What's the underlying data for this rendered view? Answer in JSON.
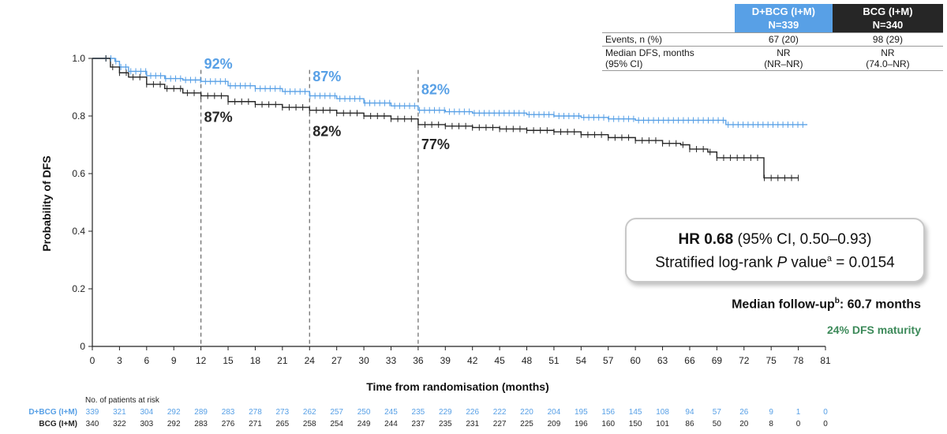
{
  "chart_data": {
    "type": "line",
    "title": "",
    "xlabel": "Time from randomisation (months)",
    "ylabel": "Probability of DFS",
    "xlim": [
      0,
      81
    ],
    "ylim": [
      0,
      1.0
    ],
    "x_ticks": [
      0,
      3,
      6,
      9,
      12,
      15,
      18,
      21,
      24,
      27,
      30,
      33,
      36,
      39,
      42,
      45,
      48,
      51,
      54,
      57,
      60,
      63,
      66,
      69,
      72,
      75,
      78,
      81
    ],
    "y_ticks": [
      0,
      0.2,
      0.4,
      0.6,
      0.8,
      1.0
    ],
    "y_tick_labels": [
      "0",
      "0.2",
      "0.4",
      "0.6",
      "0.8",
      "1.0"
    ],
    "grid": false,
    "series": [
      {
        "name": "D+BCG (I+M)",
        "color": "#58a0e6",
        "x": [
          0,
          2.5,
          3,
          4,
          6,
          8,
          10,
          12,
          15,
          18,
          21,
          24,
          27,
          30,
          33,
          36,
          39,
          42,
          45,
          48,
          51,
          54,
          57,
          60,
          63,
          66,
          69,
          70,
          72,
          75,
          78,
          79
        ],
        "y": [
          1.0,
          0.99,
          0.97,
          0.955,
          0.94,
          0.93,
          0.925,
          0.92,
          0.905,
          0.895,
          0.885,
          0.87,
          0.86,
          0.845,
          0.835,
          0.82,
          0.815,
          0.81,
          0.81,
          0.805,
          0.8,
          0.795,
          0.79,
          0.785,
          0.785,
          0.785,
          0.785,
          0.77,
          0.77,
          0.77,
          0.77,
          0.77
        ]
      },
      {
        "name": "BCG (I+M)",
        "color": "#262626",
        "x": [
          0,
          2,
          3,
          4,
          6,
          8,
          10,
          12,
          15,
          18,
          21,
          24,
          27,
          30,
          33,
          36,
          39,
          42,
          45,
          48,
          51,
          54,
          57,
          60,
          63,
          65,
          66,
          68,
          69,
          72,
          74,
          74.2,
          76,
          78
        ],
        "y": [
          1.0,
          0.97,
          0.95,
          0.935,
          0.91,
          0.895,
          0.88,
          0.87,
          0.85,
          0.84,
          0.83,
          0.82,
          0.81,
          0.8,
          0.79,
          0.77,
          0.765,
          0.76,
          0.755,
          0.75,
          0.745,
          0.735,
          0.725,
          0.715,
          0.705,
          0.7,
          0.685,
          0.675,
          0.655,
          0.655,
          0.655,
          0.585,
          0.585,
          0.585
        ]
      }
    ],
    "reference_lines": [
      {
        "x": 12,
        "labels": [
          {
            "series": 0,
            "text": "92%",
            "y": 0.965
          },
          {
            "series": 1,
            "text": "87%",
            "y": 0.78
          }
        ]
      },
      {
        "x": 24,
        "labels": [
          {
            "series": 0,
            "text": "87%",
            "y": 0.92
          },
          {
            "series": 1,
            "text": "82%",
            "y": 0.73
          }
        ]
      },
      {
        "x": 36,
        "labels": [
          {
            "series": 0,
            "text": "82%",
            "y": 0.875
          },
          {
            "series": 1,
            "text": "77%",
            "y": 0.685
          }
        ]
      }
    ]
  },
  "events_table": {
    "headers": [
      {
        "line1": "D+BCG (I+M)",
        "line2": "N=339"
      },
      {
        "line1": "BCG (I+M)",
        "line2": "N=340"
      }
    ],
    "rows": [
      {
        "label": "Events, n (%)",
        "values": [
          "67 (20)",
          "98 (29)"
        ]
      },
      {
        "label": "Median DFS, months",
        "label2": "(95% CI)",
        "values": [
          "NR",
          "NR"
        ],
        "values2": [
          "(NR–NR)",
          "(74.0–NR)"
        ]
      }
    ]
  },
  "hr_box": {
    "hr_bold": "HR 0.68",
    "hr_rest": " (95% CI, 0.50–0.93)",
    "line2_pre": "Stratified log-rank ",
    "line2_p": "P",
    "line2_mid": " value",
    "line2_sup": "a",
    "line2_post": " = 0.0154"
  },
  "followup": {
    "text": "Median follow-up",
    "sup": "b",
    "value": ": 60.7 months"
  },
  "maturity": "24% DFS maturity",
  "risk_table": {
    "title": "No. of patients at risk",
    "rows": [
      {
        "label": "D+BCG (I+M)",
        "color": "#58a0e6",
        "values": [
          339,
          321,
          304,
          292,
          289,
          283,
          278,
          273,
          262,
          257,
          250,
          245,
          235,
          229,
          226,
          222,
          220,
          204,
          195,
          156,
          145,
          108,
          94,
          57,
          26,
          9,
          1,
          0
        ]
      },
      {
        "label": "BCG (I+M)",
        "color": "#262626",
        "values": [
          340,
          322,
          303,
          292,
          283,
          276,
          271,
          265,
          258,
          254,
          249,
          244,
          237,
          235,
          231,
          227,
          225,
          209,
          196,
          160,
          150,
          101,
          86,
          50,
          20,
          8,
          0,
          0
        ]
      }
    ]
  }
}
